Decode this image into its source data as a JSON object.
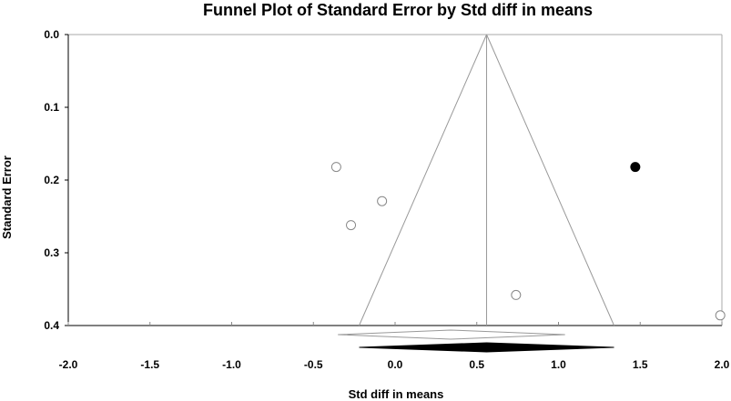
{
  "chart_data": {
    "type": "scatter",
    "title": "Funnel Plot of Standard Error by Std diff in means",
    "xlabel": "Std diff in means",
    "ylabel": "Standard Error",
    "xlim": [
      -2.0,
      2.0
    ],
    "ylim": [
      0.0,
      0.4
    ],
    "y_inverted": true,
    "x_ticks": [
      "-2.0",
      "-1.5",
      "-1.0",
      "-0.5",
      "0.0",
      "0.5",
      "1.0",
      "1.5",
      "2.0"
    ],
    "y_ticks": [
      "0.0",
      "0.1",
      "0.2",
      "0.3",
      "0.4"
    ],
    "grid": false,
    "series": [
      {
        "marker": "open-circle",
        "points": [
          {
            "x": -0.36,
            "y": 0.182
          },
          {
            "x": -0.08,
            "y": 0.229
          },
          {
            "x": -0.27,
            "y": 0.262
          },
          {
            "x": 0.74,
            "y": 0.358
          },
          {
            "x": 1.99,
            "y": 0.386
          }
        ]
      },
      {
        "marker": "filled-circle",
        "points": [
          {
            "x": 1.47,
            "y": 0.182
          }
        ]
      }
    ],
    "funnel": {
      "center": 0.56,
      "apex_se": 0.0,
      "base_se": 0.4,
      "base_left": -0.22,
      "base_right": 1.34
    },
    "summary_diamonds": [
      {
        "style": "open",
        "estimate": 0.34,
        "lower": -0.35,
        "upper": 1.04
      },
      {
        "style": "filled",
        "estimate": 0.56,
        "lower": -0.22,
        "upper": 1.34
      }
    ],
    "colors": {
      "axis": "#000000",
      "funnel": "#999999",
      "open_marker_stroke": "#888888",
      "filled_marker": "#000000"
    }
  }
}
